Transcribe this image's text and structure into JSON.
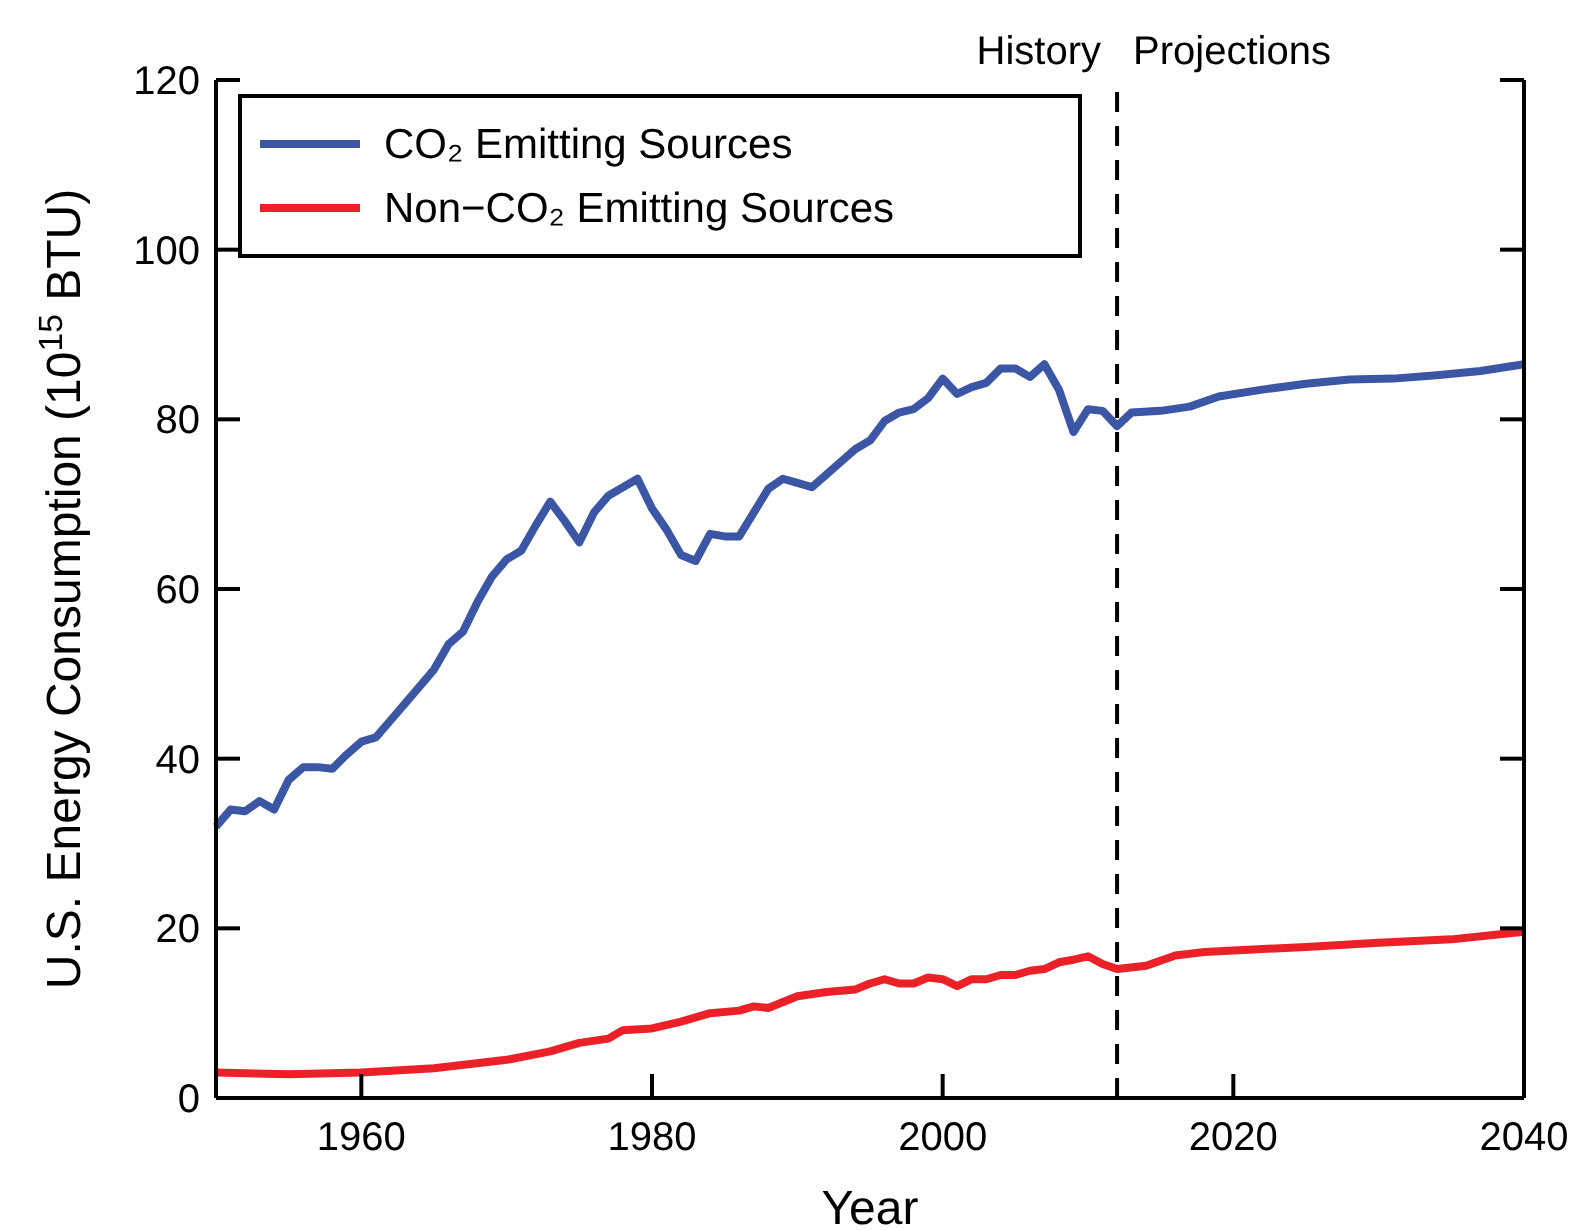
{
  "chart_data": {
    "type": "line",
    "xlabel": "Year",
    "ylabel": "U.S. Energy Consumption (10$^{15}$ BTU)",
    "xlim": [
      1950,
      2040
    ],
    "xticks": [
      1960,
      1980,
      2000,
      2020,
      2040
    ],
    "ylim": [
      0,
      120
    ],
    "yticks": [
      0,
      20,
      40,
      60,
      80,
      100,
      120
    ],
    "grid": false,
    "legend": "top left",
    "line_style": "solid",
    "series": [
      {
        "name": "CO₂ Emitting Sources",
        "color": "#3a56a5",
        "x": [
          1950,
          1951,
          1952,
          1953,
          1954,
          1955,
          1956,
          1957,
          1958,
          1959,
          1960,
          1961,
          1962,
          1963,
          1964,
          1965,
          1966,
          1967,
          1968,
          1969,
          1970,
          1971,
          1972,
          1973,
          1974,
          1975,
          1976,
          1977,
          1978,
          1979,
          1980,
          1981,
          1982,
          1983,
          1984,
          1985,
          1986,
          1987,
          1988,
          1989,
          1990,
          1991,
          1992,
          1993,
          1994,
          1995,
          1996,
          1997,
          1998,
          1999,
          2000,
          2001,
          2002,
          2003,
          2004,
          2005,
          2006,
          2007,
          2008,
          2009,
          2010,
          2011,
          2012,
          2013,
          2015,
          2017,
          2019,
          2022,
          2025,
          2028,
          2031,
          2034,
          2037,
          2040
        ],
        "values": [
          32,
          34,
          33.8,
          35,
          34,
          37.5,
          39,
          39,
          38.8,
          40.5,
          42,
          42.5,
          44.5,
          46.5,
          48.5,
          50.5,
          53.5,
          55,
          58.5,
          61.5,
          63.5,
          64.5,
          67.5,
          70.3,
          68,
          65.5,
          69,
          71,
          72,
          73,
          69.5,
          67,
          64,
          63.3,
          66.5,
          66.2,
          66.2,
          69,
          71.8,
          73,
          72.5,
          72,
          73.5,
          75,
          76.5,
          77.5,
          79.8,
          80.8,
          81.2,
          82.5,
          84.8,
          83,
          83.8,
          84.3,
          86,
          86,
          85,
          86.5,
          83.5,
          78.5,
          81.2,
          81,
          79.2,
          80.8,
          81,
          81.5,
          82.7,
          83.5,
          84.2,
          84.7,
          84.8,
          85.2,
          85.7,
          86.5
        ]
      },
      {
        "name": "Non−CO₂ Emitting Sources",
        "color": "#ec2027",
        "x": [
          1950,
          1955,
          1960,
          1965,
          1970,
          1973,
          1975,
          1977,
          1978,
          1980,
          1982,
          1984,
          1986,
          1987,
          1988,
          1990,
          1992,
          1994,
          1995,
          1996,
          1997,
          1998,
          1999,
          2000,
          2001,
          2002,
          2003,
          2004,
          2005,
          2006,
          2007,
          2008,
          2009,
          2010,
          2011,
          2012,
          2014,
          2016,
          2018,
          2020,
          2025,
          2030,
          2035,
          2040
        ],
        "values": [
          3,
          2.8,
          3,
          3.5,
          4.5,
          5.5,
          6.5,
          7,
          8,
          8.2,
          9,
          10,
          10.3,
          10.8,
          10.6,
          12,
          12.5,
          12.8,
          13.5,
          14,
          13.5,
          13.5,
          14.2,
          14,
          13.2,
          14,
          14,
          14.5,
          14.5,
          15,
          15.2,
          16,
          16.3,
          16.7,
          15.8,
          15.2,
          15.6,
          16.8,
          17.2,
          17.4,
          17.8,
          18.3,
          18.7,
          19.6
        ]
      }
    ],
    "ref_lines": [
      {
        "axis": "x",
        "value": 2012,
        "line_style": "dashed",
        "color": "#000000"
      }
    ],
    "annotations": [
      "History",
      "Projections"
    ]
  }
}
